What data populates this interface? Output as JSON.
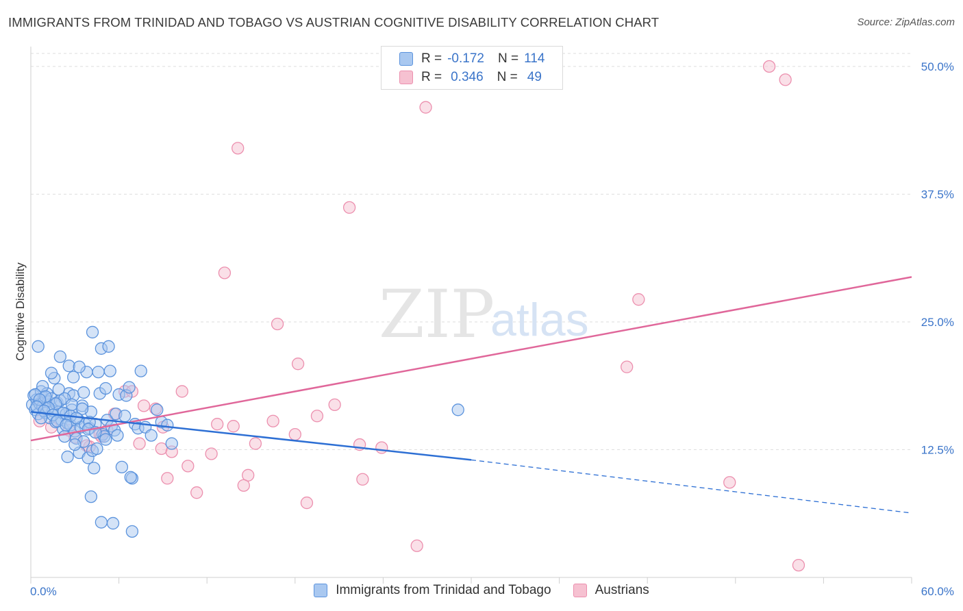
{
  "header": {
    "title": "IMMIGRANTS FROM TRINIDAD AND TOBAGO VS AUSTRIAN COGNITIVE DISABILITY CORRELATION CHART",
    "source": "Source: ZipAtlas.com"
  },
  "watermark": {
    "part1": "ZIP",
    "part2": "atlas"
  },
  "legend": {
    "rows": [
      {
        "r_label": "R =",
        "r_value": "-0.172",
        "n_label": "N =",
        "n_value": "114"
      },
      {
        "r_label": "R =",
        "r_value": "0.346",
        "n_label": "N =",
        "n_value": "49"
      }
    ]
  },
  "colors": {
    "blue_fill": "#a9c8f0",
    "blue_stroke": "#5b93dd",
    "blue_line": "#2d6fd4",
    "pink_fill": "#f6c1d1",
    "pink_stroke": "#ec8fae",
    "pink_line": "#e0679a",
    "tick_text": "#3a74c9",
    "grid": "#dedede"
  },
  "chart_data": {
    "type": "scatter",
    "title": "IMMIGRANTS FROM TRINIDAD AND TOBAGO VS AUSTRIAN COGNITIVE DISABILITY CORRELATION CHART",
    "xlabel": "",
    "ylabel": "Cognitive Disability",
    "xlim": [
      0,
      60
    ],
    "ylim": [
      0,
      50
    ],
    "x_tick_labels": [
      "0.0%",
      "60.0%"
    ],
    "y_ticks": [
      12.5,
      25.0,
      37.5,
      50.0
    ],
    "y_tick_labels": [
      "12.5%",
      "25.0%",
      "37.5%",
      "50.0%"
    ],
    "grid": true,
    "legend_position": "top-center",
    "series": [
      {
        "name": "Immigrants from Trinidad and Tobago",
        "color": "#5b93dd",
        "points": [
          [
            0.1,
            16.9
          ],
          [
            0.2,
            17.8
          ],
          [
            0.3,
            16.4
          ],
          [
            0.4,
            17.4
          ],
          [
            0.5,
            16.0
          ],
          [
            0.6,
            17.0
          ],
          [
            0.7,
            18.2
          ],
          [
            0.8,
            16.7
          ],
          [
            0.9,
            17.6
          ],
          [
            1.0,
            16.1
          ],
          [
            1.1,
            18.0
          ],
          [
            1.2,
            17.2
          ],
          [
            1.3,
            15.6
          ],
          [
            1.4,
            17.5
          ],
          [
            1.5,
            16.3
          ],
          [
            1.6,
            19.5
          ],
          [
            1.7,
            15.2
          ],
          [
            1.8,
            17.1
          ],
          [
            1.9,
            16.2
          ],
          [
            2.0,
            17.3
          ],
          [
            2.1,
            15.4
          ],
          [
            2.2,
            14.5
          ],
          [
            2.3,
            13.8
          ],
          [
            2.4,
            16.0
          ],
          [
            2.5,
            15.1
          ],
          [
            2.6,
            18.0
          ],
          [
            2.7,
            14.9
          ],
          [
            2.8,
            16.4
          ],
          [
            2.9,
            17.8
          ],
          [
            3.0,
            14.3
          ],
          [
            3.1,
            13.6
          ],
          [
            3.2,
            15.5
          ],
          [
            3.3,
            12.2
          ],
          [
            3.4,
            14.7
          ],
          [
            3.5,
            16.8
          ],
          [
            3.6,
            13.3
          ],
          [
            3.7,
            15.0
          ],
          [
            3.8,
            20.1
          ],
          [
            3.9,
            11.7
          ],
          [
            4.0,
            14.6
          ],
          [
            4.1,
            16.2
          ],
          [
            4.2,
            12.4
          ],
          [
            4.3,
            10.7
          ],
          [
            4.4,
            15.0
          ],
          [
            4.5,
            12.6
          ],
          [
            4.6,
            20.1
          ],
          [
            4.7,
            18.0
          ],
          [
            4.8,
            22.4
          ],
          [
            4.9,
            14.0
          ],
          [
            5.0,
            13.8
          ],
          [
            5.1,
            18.5
          ],
          [
            5.2,
            15.4
          ],
          [
            5.3,
            22.6
          ],
          [
            5.4,
            20.2
          ],
          [
            5.5,
            14.8
          ],
          [
            5.6,
            5.3
          ],
          [
            5.7,
            14.4
          ],
          [
            5.8,
            16.0
          ],
          [
            5.9,
            13.9
          ],
          [
            6.0,
            17.9
          ],
          [
            6.2,
            10.8
          ],
          [
            6.4,
            15.8
          ],
          [
            6.5,
            17.8
          ],
          [
            6.7,
            18.6
          ],
          [
            6.9,
            9.7
          ],
          [
            7.1,
            15.0
          ],
          [
            7.3,
            14.6
          ],
          [
            7.5,
            20.2
          ],
          [
            7.8,
            14.7
          ],
          [
            8.2,
            13.9
          ],
          [
            8.6,
            16.4
          ],
          [
            8.9,
            15.2
          ],
          [
            9.3,
            14.9
          ],
          [
            9.6,
            13.1
          ],
          [
            6.8,
            9.8
          ],
          [
            4.1,
            7.9
          ],
          [
            4.8,
            5.4
          ],
          [
            6.9,
            4.5
          ],
          [
            0.5,
            22.6
          ],
          [
            2.0,
            21.6
          ],
          [
            2.6,
            20.7
          ],
          [
            1.4,
            20.0
          ],
          [
            3.3,
            20.6
          ],
          [
            2.9,
            19.6
          ],
          [
            0.8,
            18.7
          ],
          [
            1.9,
            18.4
          ],
          [
            3.6,
            18.1
          ],
          [
            0.3,
            17.9
          ],
          [
            1.0,
            17.7
          ],
          [
            2.3,
            17.5
          ],
          [
            0.6,
            17.4
          ],
          [
            1.7,
            17.0
          ],
          [
            2.8,
            16.9
          ],
          [
            0.4,
            16.7
          ],
          [
            1.2,
            16.6
          ],
          [
            3.5,
            16.5
          ],
          [
            0.9,
            16.3
          ],
          [
            2.2,
            16.1
          ],
          [
            1.5,
            15.9
          ],
          [
            2.7,
            15.8
          ],
          [
            3.1,
            15.6
          ],
          [
            1.8,
            15.3
          ],
          [
            4.0,
            15.2
          ],
          [
            2.4,
            14.9
          ],
          [
            3.9,
            14.5
          ],
          [
            4.4,
            14.2
          ],
          [
            5.1,
            13.5
          ],
          [
            3.0,
            13.0
          ],
          [
            2.5,
            11.8
          ],
          [
            4.2,
            24.0
          ],
          [
            29.1,
            16.4
          ],
          [
            0.7,
            15.6
          ]
        ]
      },
      {
        "name": "Austrians",
        "color": "#ec8fae",
        "points": [
          [
            50.3,
            50.0
          ],
          [
            51.4,
            48.7
          ],
          [
            26.9,
            46.0
          ],
          [
            14.1,
            42.0
          ],
          [
            21.7,
            36.2
          ],
          [
            13.2,
            29.8
          ],
          [
            41.4,
            27.2
          ],
          [
            16.8,
            24.8
          ],
          [
            18.2,
            20.9
          ],
          [
            40.6,
            20.6
          ],
          [
            10.3,
            18.2
          ],
          [
            6.4,
            18.2
          ],
          [
            6.9,
            18.2
          ],
          [
            20.7,
            16.9
          ],
          [
            7.7,
            16.8
          ],
          [
            8.5,
            16.5
          ],
          [
            5.7,
            16.0
          ],
          [
            19.5,
            15.8
          ],
          [
            16.5,
            15.3
          ],
          [
            12.7,
            15.0
          ],
          [
            13.8,
            14.8
          ],
          [
            9.0,
            14.7
          ],
          [
            18.0,
            14.0
          ],
          [
            4.7,
            14.0
          ],
          [
            4.8,
            13.8
          ],
          [
            5.2,
            14.4
          ],
          [
            3.0,
            13.7
          ],
          [
            7.4,
            13.1
          ],
          [
            15.3,
            13.1
          ],
          [
            22.4,
            13.0
          ],
          [
            23.9,
            12.7
          ],
          [
            8.9,
            12.6
          ],
          [
            9.6,
            12.3
          ],
          [
            12.3,
            12.1
          ],
          [
            4.0,
            12.8
          ],
          [
            10.7,
            10.9
          ],
          [
            14.8,
            10.0
          ],
          [
            9.3,
            9.7
          ],
          [
            22.6,
            9.6
          ],
          [
            14.5,
            9.0
          ],
          [
            11.3,
            8.3
          ],
          [
            47.6,
            9.3
          ],
          [
            18.8,
            7.3
          ],
          [
            26.3,
            3.1
          ],
          [
            52.3,
            1.2
          ],
          [
            0.6,
            15.3
          ],
          [
            1.4,
            14.7
          ],
          [
            2.6,
            14.4
          ],
          [
            3.8,
            12.9
          ]
        ]
      }
    ],
    "trend_lines": [
      {
        "series": "Immigrants from Trinidad and Tobago",
        "solid": [
          [
            0,
            16.2
          ],
          [
            30,
            11.5
          ]
        ],
        "dashed": [
          [
            30,
            11.5
          ],
          [
            60,
            6.3
          ]
        ]
      },
      {
        "series": "Austrians",
        "solid": [
          [
            0,
            13.4
          ],
          [
            60,
            29.4
          ]
        ]
      }
    ]
  },
  "bottom_legend": {
    "items": [
      {
        "label": "Immigrants from Trinidad and Tobago"
      },
      {
        "label": "Austrians"
      }
    ]
  }
}
